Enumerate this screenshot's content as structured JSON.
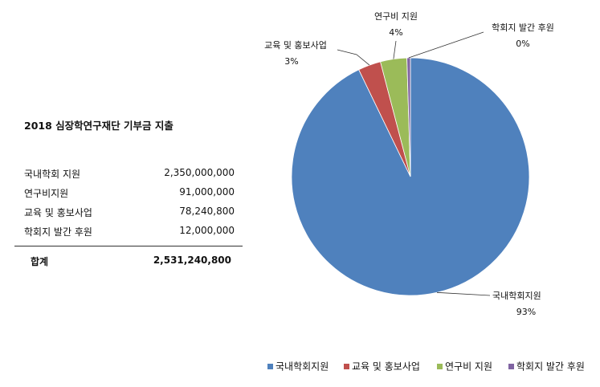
{
  "table": {
    "title": "2018 심장학연구재단 기부금 지출",
    "rows": [
      {
        "name": "국내학회 지원",
        "amount": "2,350,000,000"
      },
      {
        "name": "연구비지원",
        "amount": "91,000,000"
      },
      {
        "name": "교육 및 홍보사업",
        "amount": "78,240,800"
      },
      {
        "name": "학회지 발간 후원",
        "amount": "12,000,000"
      }
    ],
    "total_label": "합계",
    "total_amount": "2,531,240,800"
  },
  "chart_data": {
    "type": "pie",
    "categories": [
      "국내학회지원",
      "교육 및 홍보사업",
      "연구비 지원",
      "학회지 발간 후원"
    ],
    "values": [
      2350000000,
      78240800,
      91000000,
      12000000
    ],
    "percent_labels": [
      "93%",
      "3%",
      "4%",
      "0%"
    ],
    "colors": [
      "#4f81bd",
      "#c0504d",
      "#9bbb59",
      "#8064a2"
    ],
    "legend_position": "bottom-right"
  }
}
